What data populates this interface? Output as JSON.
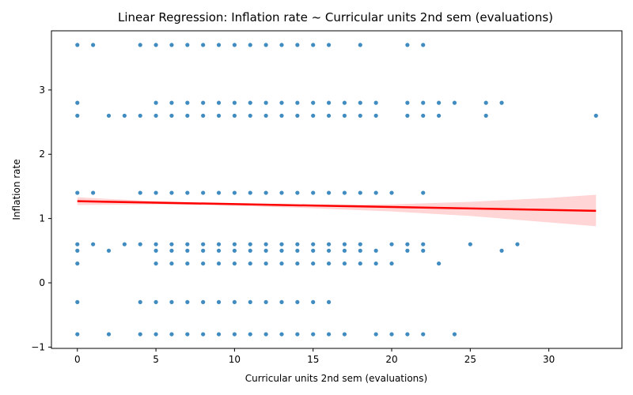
{
  "chart_data": {
    "type": "scatter",
    "title": "Linear Regression: Inflation rate ~ Curricular units 2nd sem (evaluations)",
    "xlabel": "Curricular units 2nd sem (evaluations)",
    "ylabel": "Inflation rate",
    "xlim": [
      -1.65,
      34.65
    ],
    "ylim": [
      -1.02,
      3.92
    ],
    "xticks": [
      0,
      5,
      10,
      15,
      20,
      25,
      30
    ],
    "yticks": [
      -1,
      0,
      1,
      2,
      3
    ],
    "grid": false,
    "colors": {
      "points": "#1f77b4",
      "line": "#ff0000",
      "band": "#ffb3b3"
    },
    "series": [
      {
        "type": "scatter",
        "points": [
          [
            0,
            3.7
          ],
          [
            1,
            3.7
          ],
          [
            4,
            3.7
          ],
          [
            5,
            3.7
          ],
          [
            6,
            3.7
          ],
          [
            7,
            3.7
          ],
          [
            8,
            3.7
          ],
          [
            9,
            3.7
          ],
          [
            10,
            3.7
          ],
          [
            11,
            3.7
          ],
          [
            12,
            3.7
          ],
          [
            13,
            3.7
          ],
          [
            14,
            3.7
          ],
          [
            15,
            3.7
          ],
          [
            16,
            3.7
          ],
          [
            18,
            3.7
          ],
          [
            21,
            3.7
          ],
          [
            22,
            3.7
          ],
          [
            0,
            2.8
          ],
          [
            5,
            2.8
          ],
          [
            6,
            2.8
          ],
          [
            7,
            2.8
          ],
          [
            8,
            2.8
          ],
          [
            9,
            2.8
          ],
          [
            10,
            2.8
          ],
          [
            11,
            2.8
          ],
          [
            12,
            2.8
          ],
          [
            13,
            2.8
          ],
          [
            14,
            2.8
          ],
          [
            15,
            2.8
          ],
          [
            16,
            2.8
          ],
          [
            17,
            2.8
          ],
          [
            18,
            2.8
          ],
          [
            19,
            2.8
          ],
          [
            21,
            2.8
          ],
          [
            22,
            2.8
          ],
          [
            23,
            2.8
          ],
          [
            24,
            2.8
          ],
          [
            26,
            2.8
          ],
          [
            27,
            2.8
          ],
          [
            0,
            2.6
          ],
          [
            2,
            2.6
          ],
          [
            3,
            2.6
          ],
          [
            4,
            2.6
          ],
          [
            5,
            2.6
          ],
          [
            6,
            2.6
          ],
          [
            7,
            2.6
          ],
          [
            8,
            2.6
          ],
          [
            9,
            2.6
          ],
          [
            10,
            2.6
          ],
          [
            11,
            2.6
          ],
          [
            12,
            2.6
          ],
          [
            13,
            2.6
          ],
          [
            14,
            2.6
          ],
          [
            15,
            2.6
          ],
          [
            16,
            2.6
          ],
          [
            17,
            2.6
          ],
          [
            18,
            2.6
          ],
          [
            19,
            2.6
          ],
          [
            21,
            2.6
          ],
          [
            22,
            2.6
          ],
          [
            23,
            2.6
          ],
          [
            26,
            2.6
          ],
          [
            33,
            2.6
          ],
          [
            0,
            1.4
          ],
          [
            1,
            1.4
          ],
          [
            4,
            1.4
          ],
          [
            5,
            1.4
          ],
          [
            6,
            1.4
          ],
          [
            7,
            1.4
          ],
          [
            8,
            1.4
          ],
          [
            9,
            1.4
          ],
          [
            10,
            1.4
          ],
          [
            11,
            1.4
          ],
          [
            12,
            1.4
          ],
          [
            13,
            1.4
          ],
          [
            14,
            1.4
          ],
          [
            15,
            1.4
          ],
          [
            16,
            1.4
          ],
          [
            17,
            1.4
          ],
          [
            18,
            1.4
          ],
          [
            19,
            1.4
          ],
          [
            20,
            1.4
          ],
          [
            22,
            1.4
          ],
          [
            0,
            0.6
          ],
          [
            1,
            0.6
          ],
          [
            3,
            0.6
          ],
          [
            4,
            0.6
          ],
          [
            5,
            0.6
          ],
          [
            6,
            0.6
          ],
          [
            7,
            0.6
          ],
          [
            8,
            0.6
          ],
          [
            9,
            0.6
          ],
          [
            10,
            0.6
          ],
          [
            11,
            0.6
          ],
          [
            12,
            0.6
          ],
          [
            13,
            0.6
          ],
          [
            14,
            0.6
          ],
          [
            15,
            0.6
          ],
          [
            16,
            0.6
          ],
          [
            17,
            0.6
          ],
          [
            18,
            0.6
          ],
          [
            20,
            0.6
          ],
          [
            21,
            0.6
          ],
          [
            22,
            0.6
          ],
          [
            25,
            0.6
          ],
          [
            28,
            0.6
          ],
          [
            0,
            0.5
          ],
          [
            2,
            0.5
          ],
          [
            5,
            0.5
          ],
          [
            6,
            0.5
          ],
          [
            7,
            0.5
          ],
          [
            8,
            0.5
          ],
          [
            9,
            0.5
          ],
          [
            10,
            0.5
          ],
          [
            11,
            0.5
          ],
          [
            12,
            0.5
          ],
          [
            13,
            0.5
          ],
          [
            14,
            0.5
          ],
          [
            15,
            0.5
          ],
          [
            16,
            0.5
          ],
          [
            17,
            0.5
          ],
          [
            18,
            0.5
          ],
          [
            19,
            0.5
          ],
          [
            21,
            0.5
          ],
          [
            22,
            0.5
          ],
          [
            27,
            0.5
          ],
          [
            0,
            0.3
          ],
          [
            5,
            0.3
          ],
          [
            6,
            0.3
          ],
          [
            7,
            0.3
          ],
          [
            8,
            0.3
          ],
          [
            9,
            0.3
          ],
          [
            10,
            0.3
          ],
          [
            11,
            0.3
          ],
          [
            12,
            0.3
          ],
          [
            13,
            0.3
          ],
          [
            14,
            0.3
          ],
          [
            15,
            0.3
          ],
          [
            16,
            0.3
          ],
          [
            17,
            0.3
          ],
          [
            18,
            0.3
          ],
          [
            19,
            0.3
          ],
          [
            20,
            0.3
          ],
          [
            23,
            0.3
          ],
          [
            0,
            -0.3
          ],
          [
            4,
            -0.3
          ],
          [
            5,
            -0.3
          ],
          [
            6,
            -0.3
          ],
          [
            7,
            -0.3
          ],
          [
            8,
            -0.3
          ],
          [
            9,
            -0.3
          ],
          [
            10,
            -0.3
          ],
          [
            11,
            -0.3
          ],
          [
            12,
            -0.3
          ],
          [
            13,
            -0.3
          ],
          [
            14,
            -0.3
          ],
          [
            15,
            -0.3
          ],
          [
            16,
            -0.3
          ],
          [
            0,
            -0.8
          ],
          [
            2,
            -0.8
          ],
          [
            4,
            -0.8
          ],
          [
            5,
            -0.8
          ],
          [
            6,
            -0.8
          ],
          [
            7,
            -0.8
          ],
          [
            8,
            -0.8
          ],
          [
            9,
            -0.8
          ],
          [
            10,
            -0.8
          ],
          [
            11,
            -0.8
          ],
          [
            12,
            -0.8
          ],
          [
            13,
            -0.8
          ],
          [
            14,
            -0.8
          ],
          [
            15,
            -0.8
          ],
          [
            16,
            -0.8
          ],
          [
            17,
            -0.8
          ],
          [
            19,
            -0.8
          ],
          [
            20,
            -0.8
          ],
          [
            21,
            -0.8
          ],
          [
            22,
            -0.8
          ],
          [
            24,
            -0.8
          ]
        ]
      },
      {
        "type": "line",
        "x": [
          0,
          33
        ],
        "y": [
          1.27,
          1.12
        ]
      },
      {
        "type": "area",
        "x": [
          0,
          5,
          10,
          15,
          20,
          25,
          30,
          33
        ],
        "upper": [
          1.33,
          1.27,
          1.23,
          1.21,
          1.22,
          1.26,
          1.32,
          1.37
        ],
        "lower": [
          1.21,
          1.22,
          1.2,
          1.16,
          1.11,
          1.04,
          0.94,
          0.88
        ]
      }
    ]
  }
}
